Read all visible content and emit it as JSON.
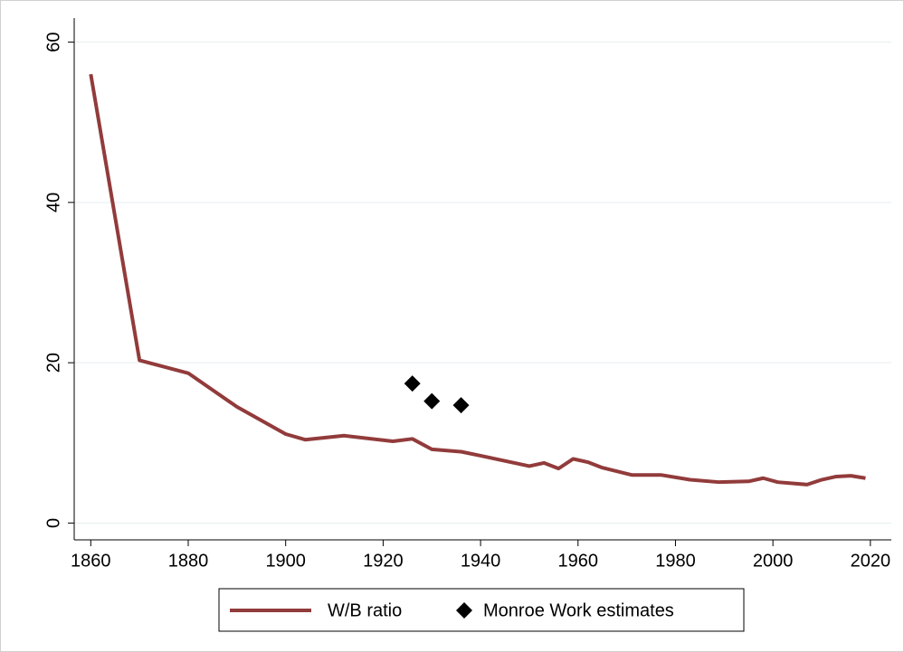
{
  "chart_data": {
    "type": "line",
    "xlim": [
      1856.6,
      2024.3
    ],
    "xticks": [
      1860,
      1880,
      1900,
      1920,
      1940,
      1960,
      1980,
      2000,
      2020
    ],
    "ylim": [
      -2.1,
      63
    ],
    "yticks": [
      0,
      20,
      40,
      60
    ],
    "grid": true,
    "legend": "bottom",
    "series": [
      {
        "name": "W/B ratio",
        "color": "#923b3b",
        "mode": "line",
        "x": [
          1860,
          1870,
          1880,
          1890,
          1900,
          1904,
          1912,
          1922,
          1926,
          1930,
          1936,
          1940,
          1950,
          1953,
          1956,
          1959,
          1962,
          1965,
          1971,
          1977,
          1983,
          1989,
          1995,
          1998,
          2001,
          2007,
          2010,
          2013,
          2016,
          2019
        ],
        "values": [
          56,
          20.3,
          18.7,
          14.5,
          11.1,
          10.4,
          10.9,
          10.2,
          10.5,
          9.2,
          8.9,
          8.4,
          7.1,
          7.5,
          6.8,
          8.0,
          7.6,
          6.9,
          6.0,
          6.0,
          5.4,
          5.1,
          5.2,
          5.6,
          5.1,
          4.8,
          5.4,
          5.8,
          5.9,
          5.6
        ]
      },
      {
        "name": "Monroe Work estimates",
        "color": "#000000",
        "mode": "diamond",
        "x": [
          1926,
          1930,
          1936
        ],
        "values": [
          17.4,
          15.2,
          14.7
        ]
      }
    ]
  }
}
